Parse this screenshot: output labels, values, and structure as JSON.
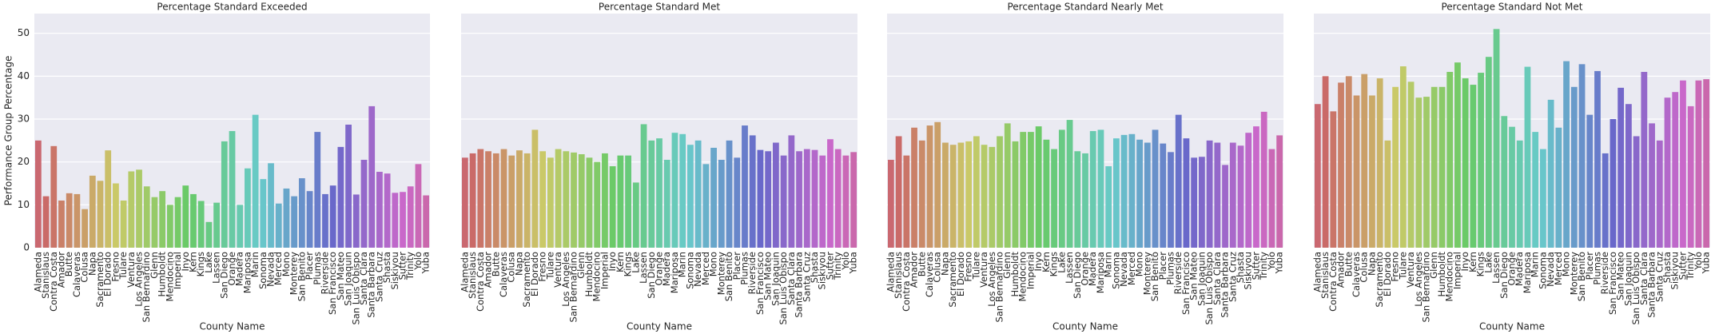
{
  "chart_data": [
    {
      "type": "bar",
      "title": "Percentage Standard Exceeded",
      "xlabel": "County Name",
      "ylabel": "Performance Group Percentage",
      "categories": [
        "Alameda",
        "Stanislaus",
        "Contra Costa",
        "Amador",
        "Butte",
        "Calaveras",
        "Colusa",
        "Napa",
        "Sacramento",
        "El Dorado",
        "Fresno",
        "Tulare",
        "Ventura",
        "Los Angeles",
        "San Bernardino",
        "Glenn",
        "Humboldt",
        "Mendocino",
        "Imperial",
        "Inyo",
        "Kern",
        "Kings",
        "Lake",
        "Lassen",
        "San Diego",
        "Orange",
        "Madera",
        "Mariposa",
        "Marin",
        "Sonoma",
        "Nevada",
        "Merced",
        "Mono",
        "Monterey",
        "San Benito",
        "Placer",
        "Plumas",
        "Riverside",
        "San Francisco",
        "San Mateo",
        "San Joaquin",
        "San Luis Obispo",
        "Santa Clara",
        "Santa Barbara",
        "Santa Cruz",
        "Shasta",
        "Siskiyou",
        "Sutter",
        "Trinity",
        "Yolo",
        "Yuba"
      ],
      "values": [
        25,
        12,
        23.7,
        11,
        12.7,
        12.5,
        9,
        16.8,
        15.6,
        22.7,
        15,
        11,
        17.8,
        18.2,
        14.3,
        11.8,
        13.2,
        10,
        11.8,
        14.5,
        12.5,
        10.9,
        6,
        10.5,
        24.8,
        27.2,
        10,
        18.5,
        31,
        16,
        19.7,
        10.3,
        13.8,
        12,
        16.2,
        13.2,
        27,
        12.5,
        14.5,
        23.5,
        28.7,
        12.4,
        20.5,
        33,
        17.7,
        17.3,
        12.8,
        13,
        14.3,
        19.5,
        12.2
      ],
      "palette": "husl",
      "ylim": [
        0,
        54.6
      ],
      "yticks": [
        0,
        10,
        20,
        30,
        40,
        50
      ],
      "grid": true
    },
    {
      "type": "bar",
      "title": "Percentage Standard Met",
      "xlabel": "County Name",
      "categories": [
        "Alameda",
        "Stanislaus",
        "Contra Costa",
        "Amador",
        "Butte",
        "Calaveras",
        "Colusa",
        "Napa",
        "Sacramento",
        "El Dorado",
        "Fresno",
        "Tulare",
        "Ventura",
        "Los Angeles",
        "San Bernardino",
        "Glenn",
        "Humboldt",
        "Mendocino",
        "Imperial",
        "Inyo",
        "Kern",
        "Kings",
        "Lake",
        "Lassen",
        "San Diego",
        "Orange",
        "Madera",
        "Mariposa",
        "Marin",
        "Sonoma",
        "Nevada",
        "Merced",
        "Mono",
        "Monterey",
        "San Benito",
        "Placer",
        "Plumas",
        "Riverside",
        "San Francisco",
        "San Mateo",
        "San Joaquin",
        "San Luis Obispo",
        "Santa Clara",
        "Santa Barbara",
        "Santa Cruz",
        "Shasta",
        "Siskiyou",
        "Sutter",
        "Trinity",
        "Yolo",
        "Yuba"
      ],
      "values": [
        21,
        22,
        23,
        22.5,
        22,
        23,
        21.5,
        22.7,
        22,
        27.5,
        22.5,
        21,
        23,
        22.5,
        22.2,
        21.8,
        21,
        20,
        22,
        19,
        21.5,
        21.5,
        15.2,
        28.8,
        25,
        25.5,
        20.5,
        26.8,
        26.5,
        24,
        25,
        19.5,
        23.3,
        20.5,
        25,
        21,
        28.5,
        26.2,
        22.8,
        22.5,
        24.5,
        21.5,
        26.2,
        22.5,
        23,
        22.8,
        21.5,
        25.3,
        23,
        21.5,
        22.3
      ],
      "palette": "husl",
      "ylim": [
        0,
        54.6
      ],
      "yticks": [
        0,
        10,
        20,
        30,
        40,
        50
      ],
      "grid": true
    },
    {
      "type": "bar",
      "title": "Percentage Standard Nearly Met",
      "xlabel": "County Name",
      "categories": [
        "Alameda",
        "Stanislaus",
        "Contra Costa",
        "Amador",
        "Butte",
        "Calaveras",
        "Colusa",
        "Napa",
        "Sacramento",
        "El Dorado",
        "Fresno",
        "Tulare",
        "Ventura",
        "Los Angeles",
        "San Bernardino",
        "Glenn",
        "Humboldt",
        "Mendocino",
        "Imperial",
        "Inyo",
        "Kern",
        "Kings",
        "Lake",
        "Lassen",
        "San Diego",
        "Orange",
        "Madera",
        "Mariposa",
        "Marin",
        "Sonoma",
        "Nevada",
        "Merced",
        "Mono",
        "Monterey",
        "San Benito",
        "Placer",
        "Plumas",
        "Riverside",
        "San Francisco",
        "San Mateo",
        "San Joaquin",
        "San Luis Obispo",
        "Santa Clara",
        "Santa Barbara",
        "Santa Cruz",
        "Shasta",
        "Siskiyou",
        "Sutter",
        "Trinity",
        "Yolo",
        "Yuba"
      ],
      "values": [
        20.5,
        26,
        21.5,
        28,
        25,
        28.5,
        29.3,
        24.5,
        24,
        24.5,
        24.8,
        26,
        24,
        23.5,
        26,
        29,
        24.8,
        27,
        27,
        28.3,
        25.2,
        23,
        27.5,
        29.8,
        22.5,
        22,
        27.2,
        27.5,
        19,
        25.5,
        26.3,
        26.5,
        25.2,
        24.5,
        27.5,
        24.3,
        22.3,
        31,
        25.5,
        21,
        21.2,
        25,
        24.5,
        19.3,
        24.5,
        23.8,
        26.8,
        28.3,
        31.7,
        23,
        26.2
      ],
      "palette": "husl",
      "ylim": [
        0,
        54.6
      ],
      "yticks": [
        0,
        10,
        20,
        30,
        40,
        50
      ],
      "grid": true
    },
    {
      "type": "bar",
      "title": "Percentage Standard Not Met",
      "xlabel": "County Name",
      "categories": [
        "Alameda",
        "Stanislaus",
        "Contra Costa",
        "Amador",
        "Butte",
        "Calaveras",
        "Colusa",
        "Napa",
        "Sacramento",
        "El Dorado",
        "Fresno",
        "Tulare",
        "Ventura",
        "Los Angeles",
        "San Bernardino",
        "Glenn",
        "Humboldt",
        "Mendocino",
        "Imperial",
        "Inyo",
        "Kern",
        "Kings",
        "Lake",
        "Lassen",
        "San Diego",
        "Orange",
        "Madera",
        "Mariposa",
        "Marin",
        "Sonoma",
        "Nevada",
        "Merced",
        "Mono",
        "Monterey",
        "San Benito",
        "Placer",
        "Plumas",
        "Riverside",
        "San Francisco",
        "San Mateo",
        "San Joaquin",
        "San Luis Obispo",
        "Santa Clara",
        "Santa Barbara",
        "Santa Cruz",
        "Shasta",
        "Siskiyou",
        "Sutter",
        "Trinity",
        "Yolo",
        "Yuba"
      ],
      "values": [
        33.5,
        40,
        31.8,
        38.5,
        40,
        35.5,
        40.5,
        35.5,
        39.5,
        25,
        37.5,
        42.3,
        38.7,
        35,
        35.2,
        37.5,
        37.5,
        41,
        43.2,
        39.5,
        38,
        40.8,
        44.5,
        51,
        30.7,
        28.2,
        25,
        42.2,
        27,
        23,
        34.5,
        28,
        43.5,
        37.5,
        42.8,
        31,
        41.2,
        22,
        30,
        37.3,
        33.5,
        26,
        41,
        29,
        25,
        35,
        36.3,
        39,
        33,
        39,
        39.3
      ],
      "palette": "husl",
      "ylim": [
        0,
        54.6
      ],
      "yticks": [
        0,
        10,
        20,
        30,
        40,
        50
      ],
      "grid": true
    }
  ]
}
